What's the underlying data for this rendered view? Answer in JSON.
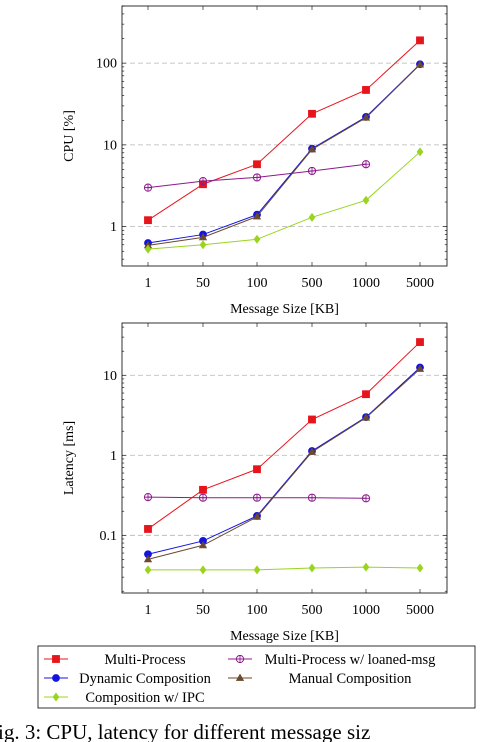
{
  "chart_data": [
    {
      "type": "line",
      "xlabel": "Message Size [KB]",
      "ylabel": "CPU [%]",
      "yscale": "log",
      "ylim": [
        0.33,
        500
      ],
      "categories": [
        "1",
        "50",
        "100",
        "500",
        "1000",
        "5000"
      ],
      "y_ticks": [
        1,
        10,
        100
      ],
      "y_tick_labels": [
        "1",
        "10",
        "100"
      ],
      "grid": "horizontal dashed at major ticks",
      "series": [
        {
          "name": "Multi-Process",
          "values": [
            1.2,
            3.3,
            5.8,
            24,
            47,
            190
          ]
        },
        {
          "name": "Multi-Process w/ loaned-msg",
          "values": [
            3.0,
            3.6,
            4.0,
            4.8,
            5.8,
            null
          ]
        },
        {
          "name": "Dynamic Composition",
          "values": [
            0.63,
            0.8,
            1.4,
            9.0,
            22,
            97
          ]
        },
        {
          "name": "Manual Composition",
          "values": [
            0.59,
            0.74,
            1.33,
            8.8,
            21.5,
            96
          ]
        },
        {
          "name": "Composition w/ IPC",
          "values": [
            0.53,
            0.6,
            0.7,
            1.3,
            2.1,
            8.2
          ]
        }
      ]
    },
    {
      "type": "line",
      "xlabel": "Message Size [KB]",
      "ylabel": "Latency [ms]",
      "yscale": "log",
      "ylim": [
        0.019,
        45
      ],
      "categories": [
        "1",
        "50",
        "100",
        "500",
        "1000",
        "5000"
      ],
      "y_ticks": [
        0.1,
        1,
        10
      ],
      "y_tick_labels": [
        "0.1",
        "1",
        "10"
      ],
      "grid": "horizontal dashed at major ticks",
      "series": [
        {
          "name": "Multi-Process",
          "values": [
            0.12,
            0.37,
            0.67,
            2.8,
            5.8,
            26
          ]
        },
        {
          "name": "Multi-Process w/ loaned-msg",
          "values": [
            0.3,
            0.295,
            0.295,
            0.295,
            0.29,
            null
          ]
        },
        {
          "name": "Dynamic Composition",
          "values": [
            0.058,
            0.085,
            0.175,
            1.13,
            3.0,
            12.5
          ]
        },
        {
          "name": "Manual Composition",
          "values": [
            0.05,
            0.075,
            0.17,
            1.1,
            2.95,
            12.0
          ]
        },
        {
          "name": "Composition w/ IPC",
          "values": [
            0.037,
            0.037,
            0.037,
            0.039,
            0.04,
            0.039
          ]
        }
      ]
    }
  ],
  "legend": {
    "placement": "bottom",
    "entries": [
      {
        "label": "Multi-Process",
        "color": "#e8141c",
        "marker": "square"
      },
      {
        "label": "Multi-Process w/ loaned-msg",
        "color": "#8b1a8b",
        "marker": "circle-plus"
      },
      {
        "label": "Dynamic Composition",
        "color": "#1414e0",
        "marker": "circle"
      },
      {
        "label": "Manual Composition",
        "color": "#6b4a2e",
        "marker": "triangle"
      },
      {
        "label": "Composition w/ IPC",
        "color": "#9ad41e",
        "marker": "diamond"
      }
    ]
  },
  "caption": "ig. 3: CPU, latency for different message siz"
}
